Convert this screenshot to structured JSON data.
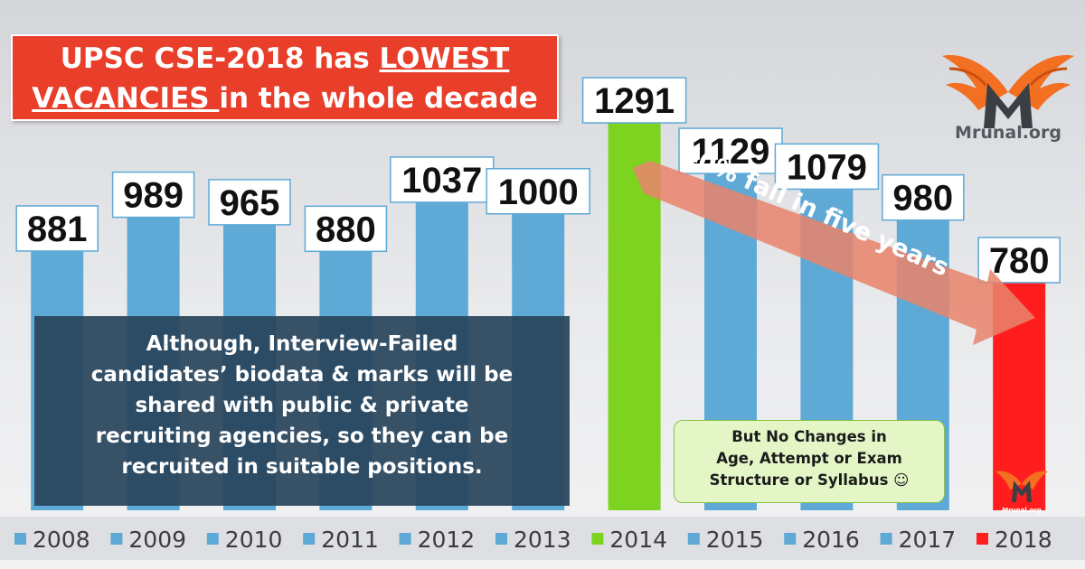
{
  "title": {
    "line1_a": "UPSC CSE-2018 has ",
    "line1_b": "LOWEST",
    "line2_a": "VACANCIES ",
    "line2_b": "in the whole decade"
  },
  "logo": {
    "text": "Mrunal.org",
    "mini_text": "Mrunal.org",
    "icon": "winged-m-logo-icon"
  },
  "arrow": {
    "text": "40% fall in five years",
    "color": "#e8836c"
  },
  "note_dark": {
    "lines": [
      "Although, Interview-Failed",
      "candidates’ biodata & marks will be",
      "shared with public & private",
      "recruiting agencies, so they can be",
      "recruited in suitable positions."
    ]
  },
  "note_green": {
    "lines": [
      "But No Changes in",
      "Age, Attempt or Exam",
      "Structure or Syllabus ☺"
    ]
  },
  "colors": {
    "default": "#5ea9d6",
    "highlight_2014": "#7ed321",
    "highlight_2018": "#ff1d1d"
  },
  "chart_data": {
    "type": "bar",
    "categories": [
      "2008",
      "2009",
      "2010",
      "2011",
      "2012",
      "2013",
      "2014",
      "2015",
      "2016",
      "2017",
      "2018"
    ],
    "series": [
      {
        "name": "",
        "values": [
          881,
          989,
          965,
          880,
          1037,
          1000,
          1291,
          1129,
          1079,
          980,
          780
        ]
      }
    ],
    "value_labels": [
      "881",
      "989",
      "965",
      "880",
      "1037",
      "1000",
      "1291",
      "1129",
      "1079",
      "980",
      "780"
    ],
    "bar_colors": [
      "#5ea9d6",
      "#5ea9d6",
      "#5ea9d6",
      "#5ea9d6",
      "#5ea9d6",
      "#5ea9d6",
      "#7ed321",
      "#5ea9d6",
      "#5ea9d6",
      "#5ea9d6",
      "#ff1d1d"
    ],
    "legend": {
      "placement": "bottom",
      "entries": [
        "2008",
        "2009",
        "2010",
        "2011",
        "2012",
        "2013",
        "2014",
        "2015",
        "2016",
        "2017",
        "2018"
      ]
    },
    "title": "UPSC CSE-2018 has LOWEST VACANCIES in the whole decade",
    "xlabel": "",
    "ylabel": "",
    "ylim": [
      0,
      1320
    ],
    "grid": false
  }
}
